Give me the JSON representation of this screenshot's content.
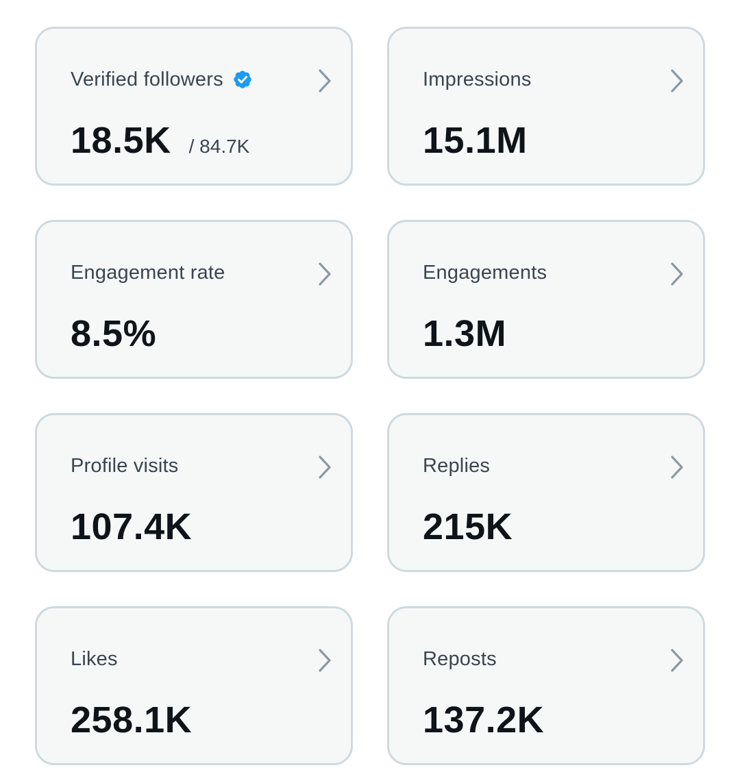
{
  "colors": {
    "card_background": "#f6f8f8",
    "card_border": "#cfd9de",
    "label_text": "#3a4550",
    "value_text": "#0f1419",
    "chevron": "#8b98a5",
    "verified_badge": "#1d9bf0"
  },
  "icons": {
    "chevron": "chevron-right-icon",
    "verified": "verified-badge-icon"
  },
  "metrics": [
    {
      "label": "Verified followers",
      "value": "18.5K",
      "subvalue": "/ 84.7K"
    },
    {
      "label": "Impressions",
      "value": "15.1M"
    },
    {
      "label": "Engagement rate",
      "value": "8.5%"
    },
    {
      "label": "Engagements",
      "value": "1.3M"
    },
    {
      "label": "Profile visits",
      "value": "107.4K"
    },
    {
      "label": "Replies",
      "value": "215K"
    },
    {
      "label": "Likes",
      "value": "258.1K"
    },
    {
      "label": "Reposts",
      "value": "137.2K"
    }
  ]
}
